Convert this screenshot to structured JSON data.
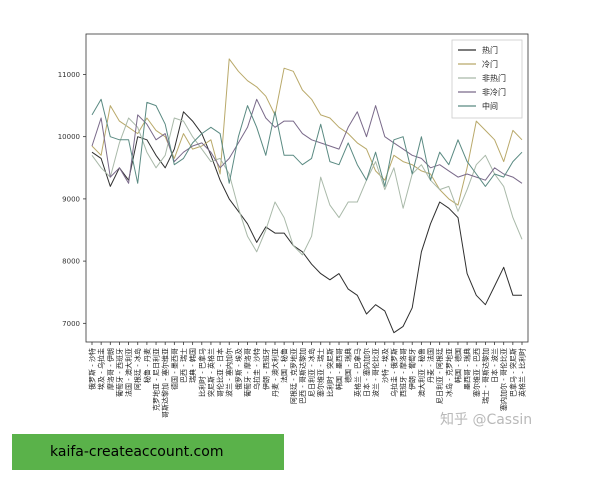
{
  "watermark": "知乎 @Cassin",
  "banner": "kaifa-createaccount.com",
  "chart_data": {
    "type": "line",
    "title": "",
    "xlabel": "",
    "ylabel": "",
    "ylim": [
      6700,
      11650
    ],
    "yticks": [
      7000,
      8000,
      9000,
      10000,
      11000
    ],
    "grid": false,
    "legend_position": "top-right",
    "categories": [
      "俄罗斯 - 沙特",
      "埃及 - 乌拉圭",
      "摩洛哥 - 伊朗",
      "葡萄牙 - 西班牙",
      "法国 - 澳大利亚",
      "阿根廷 - 冰岛",
      "秘鲁 - 丹麦",
      "克罗地亚 - 尼日利亚",
      "哥斯达黎加 - 塞尔维亚",
      "德国 - 墨西哥",
      "巴西 - 瑞士",
      "瑞典 - 韩国",
      "比利时 - 巴拿马",
      "突尼斯 - 英格兰",
      "哥伦比亚 - 日本",
      "波兰 - 塞内加尔",
      "俄罗斯 - 埃及",
      "葡萄牙 - 摩洛哥",
      "乌拉圭 - 沙特",
      "伊朗 - 西班牙",
      "丹麦 - 澳大利亚",
      "法国 - 秘鲁",
      "阿根廷 - 克罗地亚",
      "巴西 - 哥斯达黎加",
      "尼日利亚 - 冰岛",
      "塞尔维亚 - 瑞士",
      "比利时 - 突尼斯",
      "韩国 - 墨西哥",
      "德国 - 瑞典",
      "英格兰 - 巴拿马",
      "日本 - 塞内加尔",
      "波兰 - 哥伦比亚",
      "沙特 - 埃及",
      "乌拉圭 - 俄罗斯",
      "西班牙 - 摩洛哥",
      "伊朗 - 葡萄牙",
      "澳大利亚 - 秘鲁",
      "丹麦 - 法国",
      "尼日利亚 - 阿根廷",
      "冰岛 - 克罗地亚",
      "韩国 - 德国",
      "墨西哥 - 瑞典",
      "塞尔维亚 - 巴西",
      "瑞士 - 哥斯达黎加",
      "日本 - 波兰",
      "塞内加尔 - 哥伦比亚",
      "巴拿马 - 突尼斯",
      "英格兰 - 比利时"
    ],
    "series": [
      {
        "name": "热门",
        "color": "#2f2f2f",
        "values": [
          9750,
          9650,
          9200,
          9500,
          9300,
          10000,
          9950,
          9700,
          9500,
          9800,
          10400,
          10250,
          10050,
          9700,
          9300,
          9000,
          8800,
          8600,
          8300,
          8550,
          8450,
          8450,
          8250,
          8150,
          7950,
          7800,
          7700,
          7800,
          7550,
          7450,
          7150,
          7300,
          7200,
          6850,
          6950,
          7250,
          8150,
          8600,
          8950,
          8850,
          8700,
          7800,
          7450,
          7300,
          7600,
          7900,
          7450,
          7450
        ]
      },
      {
        "name": "冷门",
        "color": "#b9a96a",
        "values": [
          9850,
          9700,
          10500,
          10250,
          10150,
          10050,
          10300,
          10100,
          10000,
          9650,
          10050,
          9800,
          9850,
          9950,
          9400,
          11250,
          11050,
          10900,
          10800,
          10650,
          10350,
          11100,
          11050,
          10750,
          10600,
          10350,
          10300,
          10150,
          10050,
          9900,
          9800,
          9450,
          9300,
          9700,
          9600,
          9550,
          9450,
          9400,
          9150,
          9000,
          8900,
          9500,
          10250,
          10100,
          9950,
          9600,
          10100,
          9950
        ]
      },
      {
        "name": "非热门",
        "color": "#a9b9a9",
        "values": [
          9700,
          9500,
          9350,
          9900,
          10300,
          10150,
          9750,
          9500,
          9700,
          10300,
          10250,
          10000,
          9800,
          9600,
          9650,
          9400,
          8850,
          8400,
          8150,
          8500,
          8950,
          8700,
          8250,
          8100,
          8400,
          9350,
          8900,
          8700,
          8950,
          8950,
          9300,
          9600,
          9150,
          9500,
          8850,
          9400,
          9550,
          9300,
          9150,
          9200,
          8800,
          9150,
          9550,
          9700,
          9400,
          9200,
          8700,
          8350
        ]
      },
      {
        "name": "非冷门",
        "color": "#7a6a8a",
        "values": [
          9850,
          10300,
          9350,
          9500,
          9250,
          10350,
          10200,
          9950,
          10050,
          9600,
          9750,
          9850,
          9900,
          9750,
          9500,
          9650,
          9900,
          10150,
          10600,
          10300,
          10150,
          10250,
          10250,
          10050,
          9950,
          9900,
          9850,
          9800,
          10150,
          10400,
          10000,
          10500,
          10000,
          9900,
          9800,
          9700,
          9650,
          9500,
          9550,
          9450,
          9350,
          9400,
          9350,
          9300,
          9500,
          9400,
          9350,
          9250
        ]
      },
      {
        "name": "中间",
        "color": "#5a8a82",
        "values": [
          10350,
          10600,
          10000,
          9950,
          9950,
          9250,
          10550,
          10500,
          10200,
          9550,
          9650,
          9900,
          10050,
          10150,
          10050,
          9250,
          10000,
          10500,
          10150,
          9700,
          10400,
          9700,
          9700,
          9550,
          9650,
          10200,
          9600,
          9550,
          9900,
          9550,
          9300,
          9750,
          9200,
          9950,
          10000,
          9400,
          10000,
          9300,
          9750,
          9550,
          9950,
          9600,
          9400,
          9200,
          9400,
          9350,
          9600,
          9750
        ]
      }
    ]
  }
}
